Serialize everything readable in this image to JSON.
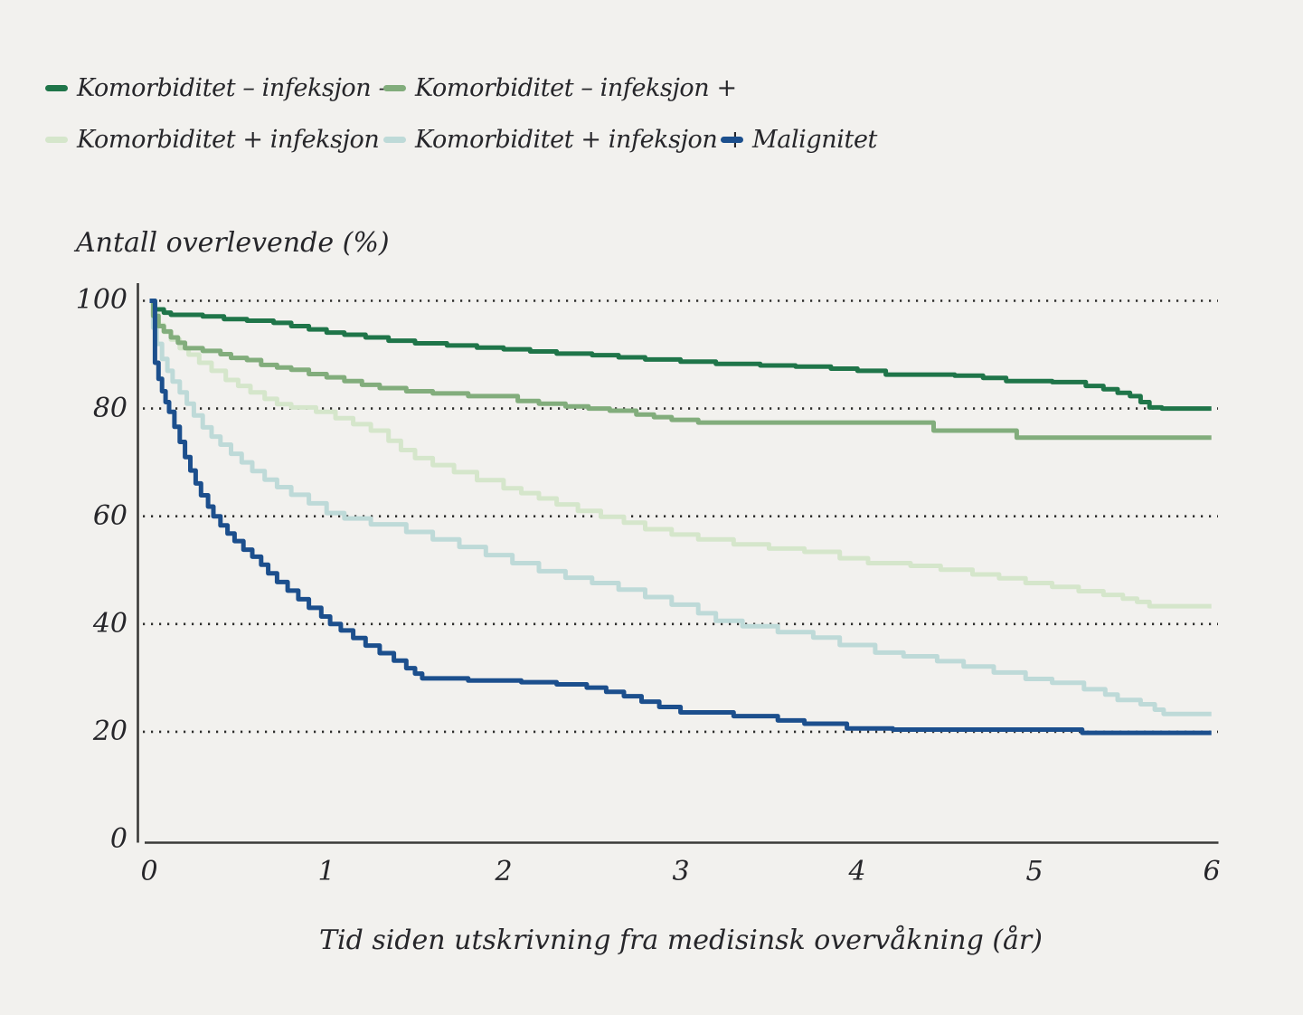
{
  "page": {
    "background_color": "#f2f1ee",
    "text_color": "#26262a"
  },
  "chart_data": {
    "type": "line",
    "subtype": "kaplan-meier-step",
    "ylabel_title": "Antall overlevende (%)",
    "xlabel": "Tid siden utskrivning fra medisinsk overvåkning (år)",
    "x_range": [
      0,
      6
    ],
    "y_range": [
      0,
      100
    ],
    "x_ticks": [
      0,
      1,
      2,
      3,
      4,
      5,
      6
    ],
    "y_ticks": [
      0,
      20,
      40,
      60,
      80,
      100
    ],
    "gridlines_y": [
      20,
      40,
      60,
      80,
      100
    ],
    "grid_style": "dotted",
    "legend_position": "top-left",
    "axis_color": "#3a3a38",
    "gridline_color": "#2f2f2d",
    "series": [
      {
        "name": "Komorbiditet – infeksjon –",
        "color": "#1f7549",
        "points": [
          [
            0,
            100
          ],
          [
            0.03,
            98.4
          ],
          [
            0.08,
            97.8
          ],
          [
            0.12,
            97.4
          ],
          [
            0.3,
            97.1
          ],
          [
            0.42,
            96.6
          ],
          [
            0.55,
            96.3
          ],
          [
            0.7,
            95.9
          ],
          [
            0.8,
            95.3
          ],
          [
            0.9,
            94.7
          ],
          [
            1.0,
            94.1
          ],
          [
            1.1,
            93.7
          ],
          [
            1.22,
            93.2
          ],
          [
            1.35,
            92.6
          ],
          [
            1.5,
            92.1
          ],
          [
            1.68,
            91.7
          ],
          [
            1.85,
            91.3
          ],
          [
            2.0,
            91.0
          ],
          [
            2.15,
            90.6
          ],
          [
            2.3,
            90.2
          ],
          [
            2.5,
            89.9
          ],
          [
            2.65,
            89.5
          ],
          [
            2.8,
            89.1
          ],
          [
            3.0,
            88.7
          ],
          [
            3.2,
            88.3
          ],
          [
            3.45,
            88.0
          ],
          [
            3.65,
            87.8
          ],
          [
            3.85,
            87.4
          ],
          [
            4.0,
            87.0
          ],
          [
            4.16,
            86.3
          ],
          [
            4.55,
            86.1
          ],
          [
            4.71,
            85.7
          ],
          [
            4.84,
            85.1
          ],
          [
            5.1,
            84.9
          ],
          [
            5.29,
            84.2
          ],
          [
            5.39,
            83.6
          ],
          [
            5.47,
            82.9
          ],
          [
            5.54,
            82.3
          ],
          [
            5.6,
            81.2
          ],
          [
            5.65,
            80.2
          ],
          [
            5.72,
            80.0
          ],
          [
            6,
            80.0
          ]
        ]
      },
      {
        "name": "Komorbiditet – infeksjon +",
        "color": "#82ad7c",
        "points": [
          [
            0,
            100
          ],
          [
            0.02,
            97.2
          ],
          [
            0.05,
            95.3
          ],
          [
            0.08,
            94.3
          ],
          [
            0.12,
            93.2
          ],
          [
            0.16,
            92.2
          ],
          [
            0.2,
            91.2
          ],
          [
            0.3,
            90.7
          ],
          [
            0.4,
            90.1
          ],
          [
            0.46,
            89.4
          ],
          [
            0.55,
            89.0
          ],
          [
            0.63,
            88.1
          ],
          [
            0.72,
            87.6
          ],
          [
            0.8,
            87.2
          ],
          [
            0.9,
            86.4
          ],
          [
            1.0,
            85.8
          ],
          [
            1.1,
            85.1
          ],
          [
            1.2,
            84.4
          ],
          [
            1.3,
            83.8
          ],
          [
            1.45,
            83.2
          ],
          [
            1.6,
            82.8
          ],
          [
            1.8,
            82.3
          ],
          [
            2.08,
            81.4
          ],
          [
            2.2,
            80.9
          ],
          [
            2.35,
            80.4
          ],
          [
            2.48,
            80.0
          ],
          [
            2.6,
            79.6
          ],
          [
            2.75,
            78.9
          ],
          [
            2.85,
            78.4
          ],
          [
            2.95,
            77.9
          ],
          [
            3.1,
            77.4
          ],
          [
            4.43,
            75.9
          ],
          [
            4.9,
            74.6
          ],
          [
            6,
            74.6
          ]
        ]
      },
      {
        "name": "Komorbiditet + infeksjon –",
        "color": "#d5e6cb",
        "points": [
          [
            0,
            100
          ],
          [
            0.02,
            97.5
          ],
          [
            0.05,
            95.5
          ],
          [
            0.08,
            94.2
          ],
          [
            0.12,
            92.8
          ],
          [
            0.17,
            91.2
          ],
          [
            0.22,
            90.0
          ],
          [
            0.28,
            88.5
          ],
          [
            0.35,
            87.0
          ],
          [
            0.43,
            85.3
          ],
          [
            0.5,
            84.2
          ],
          [
            0.57,
            83.0
          ],
          [
            0.65,
            81.8
          ],
          [
            0.72,
            80.8
          ],
          [
            0.8,
            80.2
          ],
          [
            0.94,
            79.4
          ],
          [
            1.05,
            78.2
          ],
          [
            1.15,
            77.1
          ],
          [
            1.25,
            75.9
          ],
          [
            1.35,
            74.0
          ],
          [
            1.42,
            72.3
          ],
          [
            1.5,
            70.8
          ],
          [
            1.6,
            69.5
          ],
          [
            1.72,
            68.2
          ],
          [
            1.85,
            66.7
          ],
          [
            2.0,
            65.2
          ],
          [
            2.1,
            64.3
          ],
          [
            2.2,
            63.3
          ],
          [
            2.3,
            62.2
          ],
          [
            2.42,
            61.0
          ],
          [
            2.55,
            59.9
          ],
          [
            2.68,
            58.8
          ],
          [
            2.8,
            57.6
          ],
          [
            2.95,
            56.6
          ],
          [
            3.1,
            55.7
          ],
          [
            3.3,
            54.8
          ],
          [
            3.5,
            54.0
          ],
          [
            3.7,
            53.4
          ],
          [
            3.9,
            52.2
          ],
          [
            4.06,
            51.3
          ],
          [
            4.3,
            50.8
          ],
          [
            4.47,
            50.1
          ],
          [
            4.65,
            49.2
          ],
          [
            4.8,
            48.5
          ],
          [
            4.95,
            47.6
          ],
          [
            5.1,
            46.9
          ],
          [
            5.25,
            46.1
          ],
          [
            5.39,
            45.4
          ],
          [
            5.5,
            44.7
          ],
          [
            5.58,
            44.1
          ],
          [
            5.65,
            43.3
          ],
          [
            6,
            43.3
          ]
        ]
      },
      {
        "name": "Komorbiditet + infeksjon +",
        "color": "#bedad8",
        "points": [
          [
            0,
            100
          ],
          [
            0.02,
            95.0
          ],
          [
            0.04,
            92.0
          ],
          [
            0.07,
            89.2
          ],
          [
            0.1,
            87.0
          ],
          [
            0.13,
            85.0
          ],
          [
            0.17,
            83.0
          ],
          [
            0.21,
            80.9
          ],
          [
            0.25,
            78.7
          ],
          [
            0.3,
            76.5
          ],
          [
            0.35,
            74.8
          ],
          [
            0.4,
            73.3
          ],
          [
            0.46,
            71.6
          ],
          [
            0.52,
            70.0
          ],
          [
            0.58,
            68.4
          ],
          [
            0.65,
            66.8
          ],
          [
            0.72,
            65.4
          ],
          [
            0.8,
            64.0
          ],
          [
            0.9,
            62.4
          ],
          [
            1.0,
            60.6
          ],
          [
            1.1,
            59.6
          ],
          [
            1.25,
            58.5
          ],
          [
            1.45,
            57.1
          ],
          [
            1.6,
            55.7
          ],
          [
            1.75,
            54.3
          ],
          [
            1.9,
            52.8
          ],
          [
            2.05,
            51.3
          ],
          [
            2.2,
            49.8
          ],
          [
            2.35,
            48.6
          ],
          [
            2.5,
            47.6
          ],
          [
            2.65,
            46.4
          ],
          [
            2.8,
            45.0
          ],
          [
            2.95,
            43.6
          ],
          [
            3.1,
            42.0
          ],
          [
            3.2,
            40.6
          ],
          [
            3.35,
            39.6
          ],
          [
            3.55,
            38.5
          ],
          [
            3.75,
            37.5
          ],
          [
            3.9,
            36.1
          ],
          [
            4.1,
            34.7
          ],
          [
            4.26,
            34.0
          ],
          [
            4.45,
            33.1
          ],
          [
            4.6,
            32.1
          ],
          [
            4.77,
            31.0
          ],
          [
            4.95,
            29.8
          ],
          [
            5.1,
            29.1
          ],
          [
            5.28,
            27.9
          ],
          [
            5.4,
            26.9
          ],
          [
            5.47,
            25.9
          ],
          [
            5.6,
            25.1
          ],
          [
            5.68,
            24.1
          ],
          [
            5.73,
            23.3
          ],
          [
            6,
            23.3
          ]
        ]
      },
      {
        "name": "Malignitet",
        "color": "#1c4f8d",
        "points": [
          [
            0,
            100
          ],
          [
            0.03,
            88.5
          ],
          [
            0.05,
            85.5
          ],
          [
            0.07,
            83.2
          ],
          [
            0.09,
            81.2
          ],
          [
            0.11,
            79.4
          ],
          [
            0.14,
            76.6
          ],
          [
            0.17,
            73.8
          ],
          [
            0.2,
            71.0
          ],
          [
            0.23,
            68.5
          ],
          [
            0.26,
            66.1
          ],
          [
            0.29,
            63.9
          ],
          [
            0.33,
            61.8
          ],
          [
            0.36,
            60.0
          ],
          [
            0.4,
            58.3
          ],
          [
            0.44,
            56.8
          ],
          [
            0.48,
            55.4
          ],
          [
            0.53,
            53.8
          ],
          [
            0.58,
            52.5
          ],
          [
            0.63,
            51.0
          ],
          [
            0.67,
            49.4
          ],
          [
            0.72,
            47.8
          ],
          [
            0.78,
            46.2
          ],
          [
            0.84,
            44.6
          ],
          [
            0.9,
            43.0
          ],
          [
            0.97,
            41.4
          ],
          [
            1.02,
            40.0
          ],
          [
            1.08,
            38.8
          ],
          [
            1.15,
            37.4
          ],
          [
            1.22,
            36.0
          ],
          [
            1.3,
            34.6
          ],
          [
            1.38,
            33.2
          ],
          [
            1.45,
            31.8
          ],
          [
            1.5,
            30.8
          ],
          [
            1.54,
            29.9
          ],
          [
            1.8,
            29.5
          ],
          [
            2.1,
            29.2
          ],
          [
            2.3,
            28.8
          ],
          [
            2.47,
            28.2
          ],
          [
            2.58,
            27.4
          ],
          [
            2.68,
            26.6
          ],
          [
            2.78,
            25.6
          ],
          [
            2.88,
            24.6
          ],
          [
            3.0,
            23.6
          ],
          [
            3.3,
            22.9
          ],
          [
            3.55,
            22.1
          ],
          [
            3.7,
            21.5
          ],
          [
            3.94,
            20.6
          ],
          [
            4.2,
            20.4
          ],
          [
            5.27,
            19.8
          ],
          [
            6,
            19.8
          ]
        ]
      }
    ]
  }
}
